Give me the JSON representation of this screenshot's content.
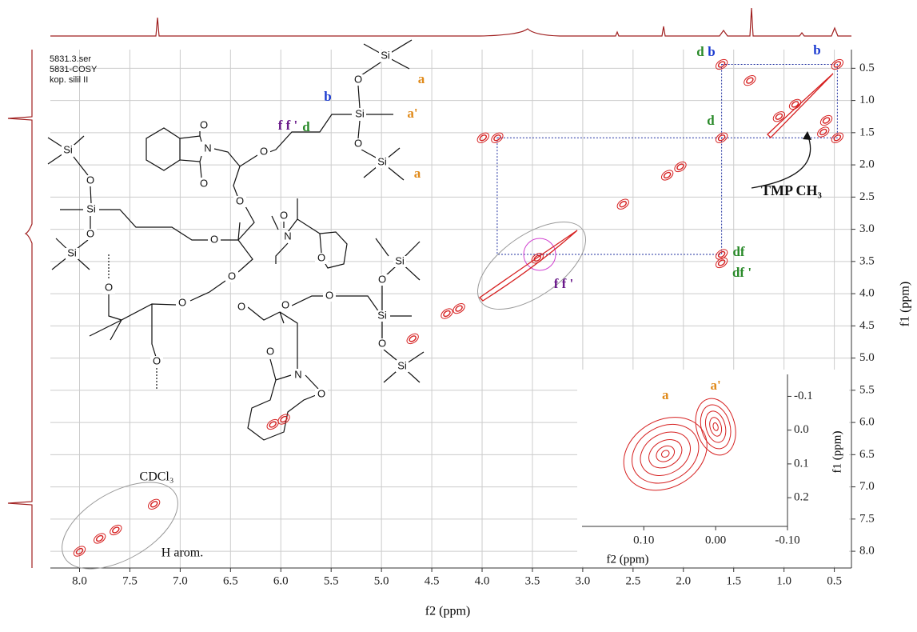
{
  "chart_data": [
    {
      "type": "cosy",
      "xlabel": "f2 (ppm)",
      "ylabel": "f1 (ppm)",
      "xlim": [
        8.29,
        0.33
      ],
      "ylim": [
        0.21,
        8.26
      ],
      "xticks": [
        {
          "value": 8,
          "label": "8.0"
        },
        7.5,
        {
          "value": 7,
          "label": "7.0"
        },
        6.5,
        {
          "value": 6,
          "label": "6.0"
        },
        5.5,
        {
          "value": 5,
          "label": "5.0"
        },
        4.5,
        {
          "value": 4,
          "label": "4.0"
        },
        3.5,
        {
          "value": 3,
          "label": "3.0"
        },
        2.5,
        {
          "value": 2,
          "label": "2.0"
        },
        1.5,
        {
          "value": 1,
          "label": "1.0"
        },
        0.5
      ],
      "yticks": [
        0.5,
        {
          "value": 1,
          "label": "1.0"
        },
        1.5,
        {
          "value": 2,
          "label": "2.0"
        },
        2.5,
        {
          "value": 3,
          "label": "3.0"
        },
        3.5,
        {
          "value": 4,
          "label": "4.0"
        },
        4.5,
        {
          "value": 5,
          "label": "5.0"
        },
        5.5,
        {
          "value": 6,
          "label": "6.0"
        },
        6.5,
        {
          "value": 7,
          "label": "7.0"
        },
        7.5,
        {
          "value": 8,
          "label": "8.0"
        }
      ],
      "grid": true,
      "color": "#d62020",
      "x": [
        0.47,
        1.62,
        0.47,
        1.62,
        1.62,
        1.62,
        3.99,
        3.85,
        3.45,
        2.6,
        2.16,
        2.03,
        1.34,
        1.05,
        0.89,
        0.61,
        0.58,
        7.26,
        8.0,
        7.8,
        7.64,
        4.35,
        4.23,
        4.69,
        6.08,
        5.97
      ],
      "values": [
        0.44,
        0.44,
        1.58,
        1.58,
        3.39,
        3.52,
        1.58,
        1.58,
        3.45,
        2.61,
        2.16,
        2.03,
        0.69,
        1.25,
        1.06,
        1.49,
        1.31,
        7.27,
        8.0,
        7.8,
        7.67,
        4.31,
        4.23,
        4.7,
        6.03,
        5.95
      ],
      "annotations": [
        "d",
        "b",
        "b",
        "d",
        "TMP CH₃",
        "df",
        "df '",
        "f f '",
        "CDCl₃",
        "H arom."
      ]
    },
    {
      "type": "contour",
      "xlabel": "f2 (ppm)",
      "ylabel": "f1 (ppm)",
      "xlim": [
        0.186,
        -0.1
      ],
      "ylim": [
        -0.165,
        0.285
      ],
      "xticks": [
        {
          "value": 0.1,
          "label": "0.10"
        },
        {
          "value": 0,
          "label": "0.00"
        },
        {
          "value": -0.1,
          "label": "-0.10"
        }
      ],
      "yticks": [
        -0.1,
        {
          "value": 0,
          "label": "0.0"
        },
        0.1,
        0.2
      ],
      "color": "#d62020",
      "x": [
        0.07,
        0.0
      ],
      "values": [
        0.07,
        -0.01
      ],
      "labels": [
        "a",
        "a'"
      ]
    }
  ],
  "sample_info": [
    "5831.3.ser",
    "5831-COSY",
    "kop. silil II"
  ],
  "structure": {
    "atoms": [
      "Si",
      "O",
      "Si",
      "O",
      "Si",
      "O",
      "N",
      "O",
      "O",
      "Si",
      "O",
      "Si",
      "O",
      "Si",
      "O",
      "O",
      "O",
      "O",
      "O",
      "O",
      "N",
      "O",
      "O",
      "O",
      "Si",
      "O",
      "Si",
      "O",
      "Si",
      "N",
      "O",
      "O",
      "O",
      "O"
    ],
    "labels": [
      "a",
      "a'",
      "a",
      "b",
      "d",
      "f f '"
    ]
  }
}
